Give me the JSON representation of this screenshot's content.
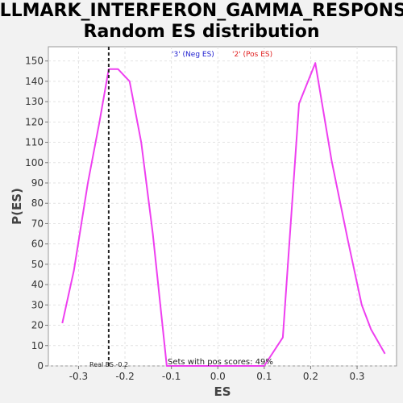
{
  "chart_data": {
    "type": "line",
    "title_line1": "HALLMARK_INTERFERON_GAMMA_RESPONSE:",
    "title_line2": "Random ES distribution",
    "xlabel": "ES",
    "ylabel": "P(ES)",
    "xlim": [
      -0.365,
      0.385
    ],
    "ylim": [
      0,
      157
    ],
    "x_ticks": [
      -0.3,
      -0.2,
      -0.1,
      0.0,
      0.1,
      0.2,
      0.3
    ],
    "x_tick_labels": [
      "-0.3",
      "-0.2",
      "-0.1",
      "0.0",
      "0.1",
      "0.2",
      "0.3"
    ],
    "y_ticks": [
      0,
      10,
      20,
      30,
      40,
      50,
      60,
      70,
      80,
      90,
      100,
      110,
      120,
      130,
      140,
      150
    ],
    "y_tick_labels": [
      "0",
      "10",
      "20",
      "30",
      "40",
      "50",
      "60",
      "70",
      "80",
      "90",
      "100",
      "110",
      "120",
      "130",
      "140",
      "150"
    ],
    "grid": true,
    "series": [
      {
        "color": "#ee3ff0",
        "x": [
          -0.335,
          -0.31,
          -0.28,
          -0.255,
          -0.235,
          -0.215,
          -0.19,
          -0.165,
          -0.14,
          -0.11,
          0.0,
          0.1,
          0.14,
          0.175,
          0.21,
          0.245,
          0.28,
          0.31,
          0.33,
          0.36
        ],
        "y": [
          21,
          47,
          90,
          120,
          146,
          146,
          140,
          110,
          65,
          0,
          0,
          0,
          14,
          129,
          149,
          101,
          62,
          30,
          18,
          6
        ]
      }
    ],
    "legend": [
      {
        "label": "'3' (Neg ES)",
        "color": "#2020d0"
      },
      {
        "label": "'2' (Pos ES)",
        "color": "#e02020"
      }
    ],
    "legend_position": "top-center",
    "annotations": {
      "real_es_x": -0.235,
      "real_es_label": "Real ES -0.2",
      "pos_scores_label": "Sets with pos scores: 49%"
    }
  }
}
